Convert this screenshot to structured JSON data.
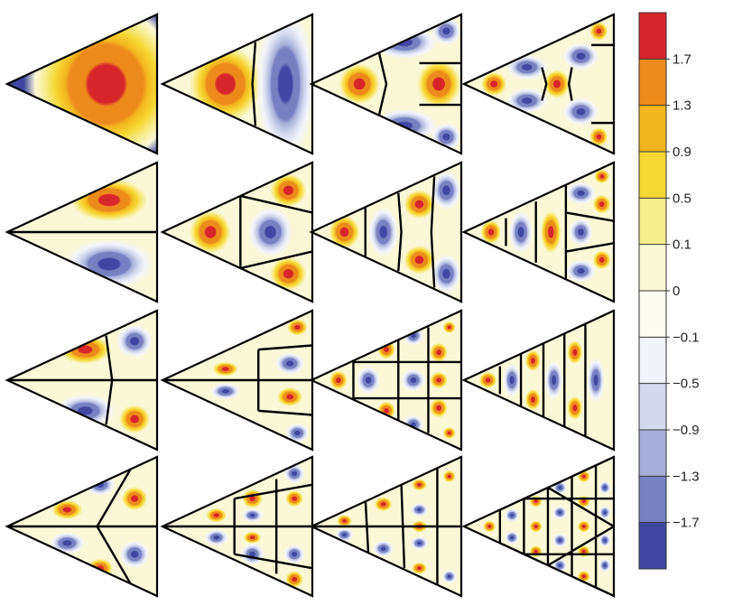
{
  "colorbar": {
    "ticks": [
      "1.7",
      "1.3",
      "0.9",
      "0.5",
      "0.1",
      "0",
      "−0.1",
      "−0.5",
      "−0.9",
      "−1.3",
      "−1.7"
    ],
    "colors": [
      "#d7262b",
      "#ec8a1c",
      "#f2b61e",
      "#f6d835",
      "#f7ec8e",
      "#fbf8d8",
      "#fcfbef",
      "#f2f4fb",
      "#d4d9ee",
      "#a7afd9",
      "#7781c2",
      "#3f47a2"
    ]
  },
  "panels": [
    {
      "row": 0,
      "col": 0,
      "mode": "1"
    },
    {
      "row": 0,
      "col": 1,
      "mode": "2"
    },
    {
      "row": 0,
      "col": 2,
      "mode": "3"
    },
    {
      "row": 0,
      "col": 3,
      "mode": "4"
    },
    {
      "row": 1,
      "col": 0,
      "mode": "5"
    },
    {
      "row": 1,
      "col": 1,
      "mode": "6"
    },
    {
      "row": 1,
      "col": 2,
      "mode": "7"
    },
    {
      "row": 1,
      "col": 3,
      "mode": "8"
    },
    {
      "row": 2,
      "col": 0,
      "mode": "9"
    },
    {
      "row": 2,
      "col": 1,
      "mode": "10"
    },
    {
      "row": 2,
      "col": 2,
      "mode": "11"
    },
    {
      "row": 2,
      "col": 3,
      "mode": "12"
    },
    {
      "row": 3,
      "col": 0,
      "mode": "13"
    },
    {
      "row": 3,
      "col": 1,
      "mode": "14"
    },
    {
      "row": 3,
      "col": 2,
      "mode": "15"
    },
    {
      "row": 3,
      "col": 3,
      "mode": "16"
    }
  ]
}
